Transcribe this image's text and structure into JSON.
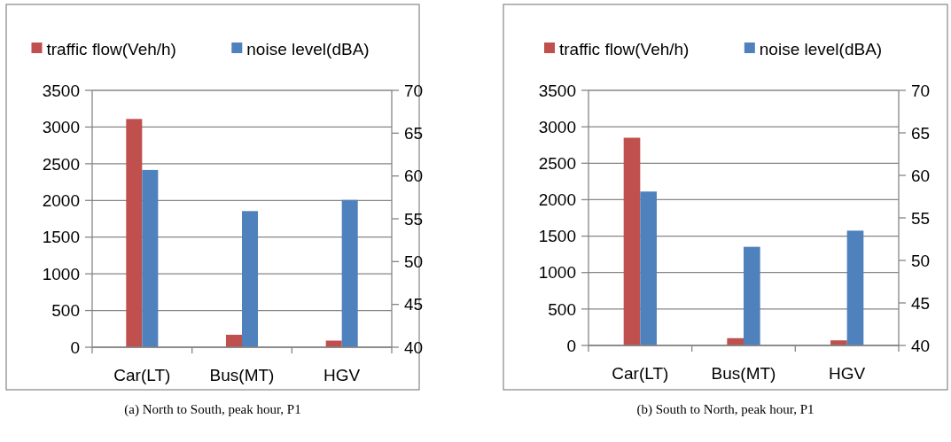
{
  "chart_data": [
    {
      "type": "bar",
      "categories": [
        "Car(LT)",
        "Bus(MT)",
        "HGV"
      ],
      "series": [
        {
          "name": "traffic flow(Veh/h)",
          "color": "#c0504d",
          "values": [
            3110,
            170,
            90
          ]
        },
        {
          "name": "noise level(dBA)",
          "color": "#4f81bd",
          "axis": "y2",
          "values": [
            60.7,
            55.9,
            57.2
          ]
        }
      ],
      "ylim": [
        0,
        3500
      ],
      "yticks": [
        0,
        500,
        1000,
        1500,
        2000,
        2500,
        3000,
        3500
      ],
      "y2lim": [
        40,
        70
      ],
      "y2ticks": [
        40,
        45,
        50,
        55,
        60,
        65,
        70
      ],
      "grid": "y",
      "legend": "top",
      "annotations": [
        "(a) North to South, peak hour, P1"
      ]
    },
    {
      "type": "bar",
      "categories": [
        "Car(LT)",
        "Bus(MT)",
        "HGV"
      ],
      "series": [
        {
          "name": "traffic flow(Veh/h)",
          "color": "#c0504d",
          "values": [
            2850,
            100,
            70
          ]
        },
        {
          "name": "noise level(dBA)",
          "color": "#4f81bd",
          "axis": "y2",
          "values": [
            58.1,
            51.6,
            53.5
          ]
        }
      ],
      "ylim": [
        0,
        3500
      ],
      "yticks": [
        0,
        500,
        1000,
        1500,
        2000,
        2500,
        3000,
        3500
      ],
      "y2lim": [
        40,
        70
      ],
      "y2ticks": [
        40,
        45,
        50,
        55,
        60,
        65,
        70
      ],
      "grid": "y",
      "legend": "top",
      "annotations": [
        "(b) South to North, peak hour, P1"
      ]
    }
  ]
}
